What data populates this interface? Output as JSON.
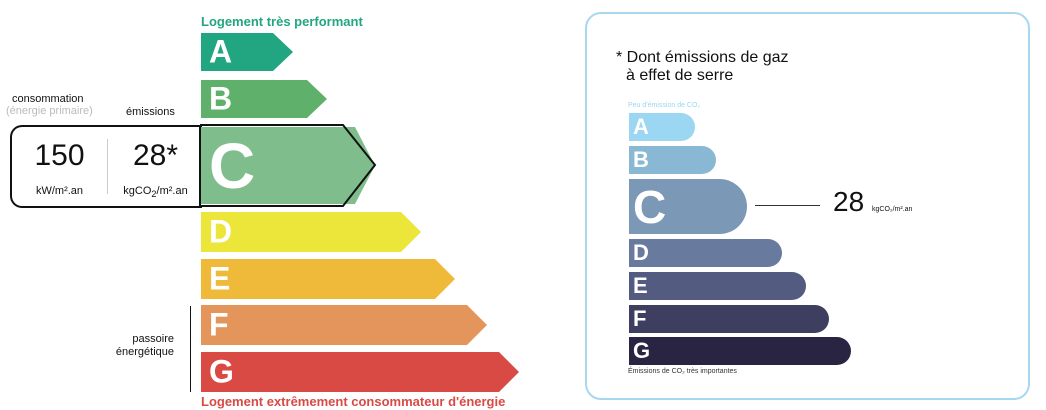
{
  "left": {
    "top_label": "Logement très performant",
    "bottom_label": "Logement extrêmement consommateur d'énergie",
    "consumption_label": "consommation",
    "consumption_sub": "(énergie primaire)",
    "emissions_label": "émissions",
    "consumption_value": "150",
    "consumption_unit": "kW/m².an",
    "emissions_value": "28*",
    "emissions_unit_html": "kgCO<sub>2</sub>/m².an",
    "passoire": "passoire énergétique",
    "current_class": "C",
    "classes": [
      {
        "letter": "A",
        "color": "#22a681"
      },
      {
        "letter": "B",
        "color": "#5fb06a"
      },
      {
        "letter": "C",
        "color": "#7fbe8c"
      },
      {
        "letter": "D",
        "color": "#ece63a"
      },
      {
        "letter": "E",
        "color": "#efb93a"
      },
      {
        "letter": "F",
        "color": "#e3955b"
      },
      {
        "letter": "G",
        "color": "#d94a45"
      }
    ]
  },
  "right": {
    "title_line1": "* Dont émissions de gaz",
    "title_line2": "à effet de serre",
    "top_label": "Peu d'émission de CO₂",
    "bottom_label": "Émissions de CO₂ très importantes",
    "value": "28",
    "unit": "kgCO₂/m².an",
    "current_class": "C",
    "classes": [
      {
        "letter": "A",
        "color": "#9bd6f2"
      },
      {
        "letter": "B",
        "color": "#88b8d4"
      },
      {
        "letter": "C",
        "color": "#7b98b7"
      },
      {
        "letter": "D",
        "color": "#687a9e"
      },
      {
        "letter": "E",
        "color": "#535b80"
      },
      {
        "letter": "F",
        "color": "#3e3f60"
      },
      {
        "letter": "G",
        "color": "#282442"
      }
    ]
  }
}
